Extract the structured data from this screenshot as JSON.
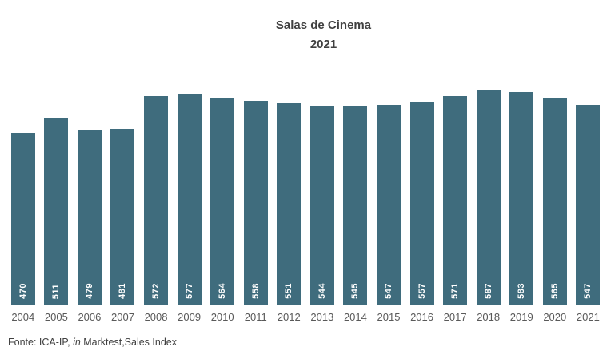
{
  "chart_data": {
    "type": "bar",
    "title": "Salas de Cinema",
    "subtitle": "2021",
    "categories": [
      "2004",
      "2005",
      "2006",
      "2007",
      "2008",
      "2009",
      "2010",
      "2011",
      "2012",
      "2013",
      "2014",
      "2015",
      "2016",
      "2017",
      "2018",
      "2019",
      "2020",
      "2021"
    ],
    "values": [
      470,
      511,
      479,
      481,
      572,
      577,
      564,
      558,
      551,
      544,
      545,
      547,
      557,
      571,
      587,
      583,
      565,
      547
    ],
    "xlabel": "",
    "ylabel": "",
    "ylim": [
      0,
      600
    ],
    "grid": false,
    "legend": false,
    "value_labels_position": "inside-base-rotated-vertical",
    "colors": {
      "bar": "#3F6C7D",
      "value_label": "#FFFFFF",
      "axis_line": "#D9D9D9",
      "title": "#404040",
      "tick_label": "#595959",
      "footer_text": "#404040",
      "background": "#FFFFFF"
    }
  },
  "source_note": {
    "prefix": "Fonte: ICA-IP, ",
    "italic": "in",
    "suffix": " Marktest,Sales Index"
  }
}
